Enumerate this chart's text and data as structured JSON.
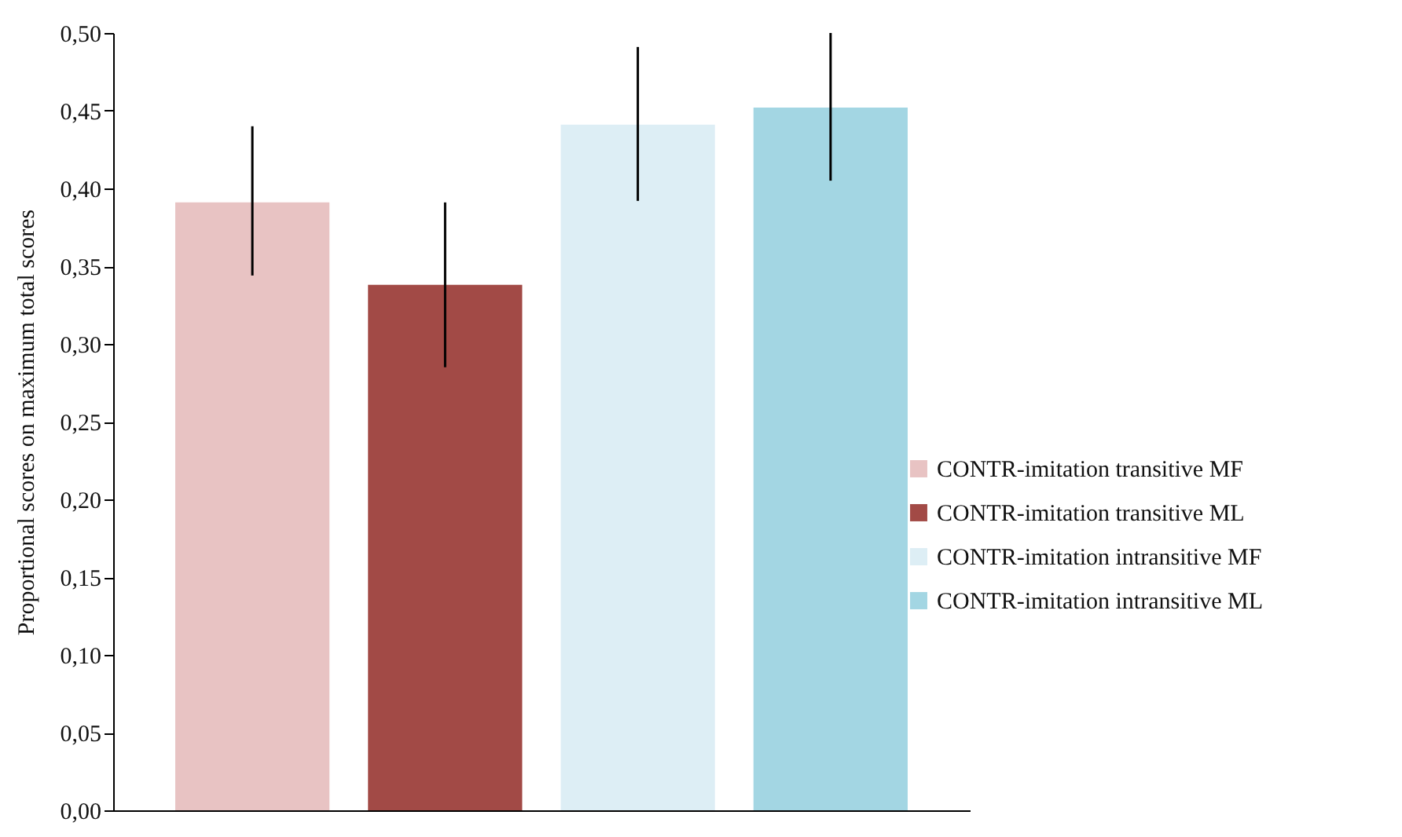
{
  "chart_data": {
    "type": "bar",
    "ylabel": "Proportional scores on maximum  total scores",
    "categories": [
      null
    ],
    "series": [
      {
        "name": "CONTR-imitation transitive MF",
        "color": "#e8c3c3",
        "values": [
          0.391
        ],
        "errors": [
          [
            0.344,
            0.44
          ]
        ]
      },
      {
        "name": "CONTR-imitation transitive ML",
        "color": "#a24a46",
        "values": [
          0.338
        ],
        "errors": [
          [
            0.285,
            0.391
          ]
        ]
      },
      {
        "name": "CONTR-imitation intransitive MF",
        "color": "#ddeef5",
        "values": [
          0.441
        ],
        "errors": [
          [
            0.392,
            0.491
          ]
        ]
      },
      {
        "name": "CONTR-imitation intransitive ML",
        "color": "#a3d6e3",
        "values": [
          0.452
        ],
        "errors": [
          [
            0.405,
            0.5
          ]
        ]
      }
    ],
    "ylim": [
      0,
      0.5
    ],
    "yticks": [
      {
        "value": 0,
        "label": "0,00"
      },
      {
        "value": 0.05,
        "label": "0,05"
      },
      {
        "value": 0.1,
        "label": "0,10"
      },
      {
        "value": 0.15,
        "label": "0,15"
      },
      {
        "value": 0.2,
        "label": "0,20"
      },
      {
        "value": 0.25,
        "label": "0,25"
      },
      {
        "value": 0.3,
        "label": "0,30"
      },
      {
        "value": 0.35,
        "label": "0,35"
      },
      {
        "value": 0.4,
        "label": "0,40"
      },
      {
        "value": 0.45,
        "label": "0,45"
      },
      {
        "value": 0.5,
        "label": "0,50"
      }
    ],
    "tick_labels": "y",
    "grid": false,
    "legend": "right"
  }
}
